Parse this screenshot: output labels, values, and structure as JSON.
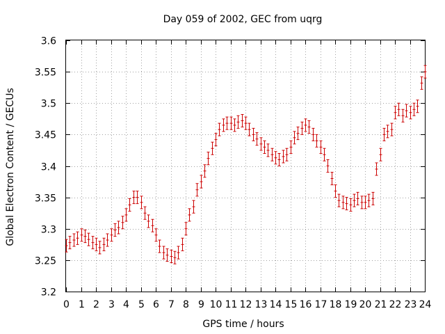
{
  "chart_data": {
    "type": "scatter",
    "title": "Day 059 of 2002, GEC from uqrg",
    "xlabel": "GPS time / hours",
    "ylabel": "Global Electron Content / GECUs",
    "xlim": [
      0,
      24
    ],
    "ylim": [
      3.2,
      3.6
    ],
    "x_ticks": [
      "0",
      "1",
      "2",
      "3",
      "4",
      "5",
      "6",
      "7",
      "8",
      "9",
      "10",
      "11",
      "12",
      "13",
      "14",
      "15",
      "16",
      "17",
      "18",
      "19",
      "20",
      "21",
      "22",
      "23",
      "24"
    ],
    "y_ticks": [
      "3.2",
      "3.25",
      "3.3",
      "3.35",
      "3.4",
      "3.45",
      "3.5",
      "3.55",
      "3.6"
    ],
    "grid": true,
    "series": [
      {
        "color": "#cc0000",
        "error": 0.01,
        "x": [
          0,
          0.25,
          0.5,
          0.75,
          1,
          1.25,
          1.5,
          1.75,
          2,
          2.25,
          2.5,
          2.75,
          3,
          3.25,
          3.5,
          3.75,
          4,
          4.25,
          4.5,
          4.75,
          5,
          5.25,
          5.5,
          5.75,
          6,
          6.25,
          6.5,
          6.75,
          7,
          7.25,
          7.5,
          7.75,
          8,
          8.25,
          8.5,
          8.75,
          9,
          9.25,
          9.5,
          9.75,
          10,
          10.25,
          10.5,
          10.75,
          11,
          11.25,
          11.5,
          11.75,
          12,
          12.25,
          12.5,
          12.75,
          13,
          13.25,
          13.5,
          13.75,
          14,
          14.25,
          14.5,
          14.75,
          15,
          15.25,
          15.5,
          15.75,
          16,
          16.25,
          16.5,
          16.75,
          17,
          17.25,
          17.5,
          17.75,
          18,
          18.25,
          18.5,
          18.75,
          19,
          19.25,
          19.5,
          19.75,
          20,
          20.25,
          20.5,
          20.75,
          21,
          21.25,
          21.5,
          21.75,
          22,
          22.25,
          22.5,
          22.75,
          23,
          23.25,
          23.5,
          23.75,
          24
        ],
        "y": [
          3.273,
          3.278,
          3.282,
          3.285,
          3.29,
          3.288,
          3.283,
          3.278,
          3.275,
          3.27,
          3.275,
          3.282,
          3.29,
          3.298,
          3.302,
          3.31,
          3.322,
          3.338,
          3.35,
          3.35,
          3.342,
          3.325,
          3.312,
          3.305,
          3.29,
          3.272,
          3.262,
          3.258,
          3.256,
          3.254,
          3.262,
          3.275,
          3.3,
          3.322,
          3.335,
          3.362,
          3.375,
          3.392,
          3.412,
          3.428,
          3.442,
          3.458,
          3.465,
          3.468,
          3.468,
          3.465,
          3.47,
          3.472,
          3.468,
          3.458,
          3.45,
          3.443,
          3.435,
          3.43,
          3.425,
          3.418,
          3.413,
          3.41,
          3.415,
          3.418,
          3.43,
          3.445,
          3.452,
          3.46,
          3.465,
          3.462,
          3.45,
          3.44,
          3.43,
          3.418,
          3.4,
          3.38,
          3.36,
          3.345,
          3.342,
          3.34,
          3.338,
          3.345,
          3.348,
          3.342,
          3.342,
          3.345,
          3.348,
          3.395,
          3.418,
          3.45,
          3.455,
          3.458,
          3.485,
          3.49,
          3.48,
          3.488,
          3.485,
          3.49,
          3.495,
          3.532,
          3.55
        ]
      }
    ]
  }
}
